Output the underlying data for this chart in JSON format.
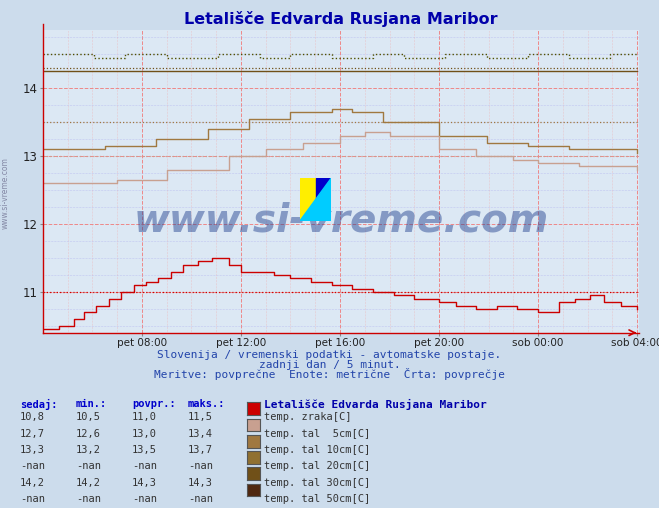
{
  "title": "Letališče Edvarda Rusjana Maribor",
  "background_color": "#ccdcec",
  "plot_bg_color": "#dce8f4",
  "xlabel_ticks": [
    "pet 08:00",
    "pet 12:00",
    "pet 16:00",
    "pet 20:00",
    "sob 00:00",
    "sob 04:00"
  ],
  "ylabel_ticks": [
    11,
    12,
    13,
    14
  ],
  "ylim": [
    10.4,
    14.85
  ],
  "xlim": [
    0,
    289
  ],
  "subtitle1": "Slovenija / vremenski podatki - avtomatske postaje.",
  "subtitle2": "zadnji dan / 5 minut.",
  "subtitle3": "Meritve: povprečne  Enote: metrične  Črta: povprečje",
  "watermark": "www.si-vreme.com",
  "legend_station": "Letališče Edvarda Rusjana Maribor",
  "legend_items": [
    {
      "label": "temp. zraka[C]",
      "color": "#cc0000",
      "sedaj": "10,8",
      "min": "10,5",
      "povpr": "11,0",
      "maks": "11,5"
    },
    {
      "label": "temp. tal  5cm[C]",
      "color": "#c8a090",
      "sedaj": "12,7",
      "min": "12,6",
      "povpr": "13,0",
      "maks": "13,4"
    },
    {
      "label": "temp. tal 10cm[C]",
      "color": "#a07840",
      "sedaj": "13,3",
      "min": "13,2",
      "povpr": "13,5",
      "maks": "13,7"
    },
    {
      "label": "temp. tal 20cm[C]",
      "color": "#907030",
      "sedaj": "-nan",
      "min": "-nan",
      "povpr": "-nan",
      "maks": "-nan"
    },
    {
      "label": "temp. tal 30cm[C]",
      "color": "#705018",
      "sedaj": "14,2",
      "min": "14,2",
      "povpr": "14,3",
      "maks": "14,3"
    },
    {
      "label": "temp. tal 50cm[C]",
      "color": "#502810",
      "sedaj": "-nan",
      "min": "-nan",
      "povpr": "-nan",
      "maks": "-nan"
    }
  ],
  "table_headers": [
    "sedaj:",
    "min.:",
    "povpr.:",
    "maks.:"
  ],
  "x_tick_positions": [
    48,
    96,
    144,
    192,
    240,
    288
  ],
  "avg_dotted_lines": [
    {
      "y": 11.0,
      "color": "#cc0000"
    },
    {
      "y": 13.0,
      "color": "#c8a090"
    },
    {
      "y": 13.5,
      "color": "#a07840"
    },
    {
      "y": 14.3,
      "color": "#705018"
    }
  ],
  "line_colors": {
    "red": "#cc0000",
    "tan": "#c8a090",
    "olive": "#a07840",
    "brown": "#705018",
    "top": "#505000"
  }
}
